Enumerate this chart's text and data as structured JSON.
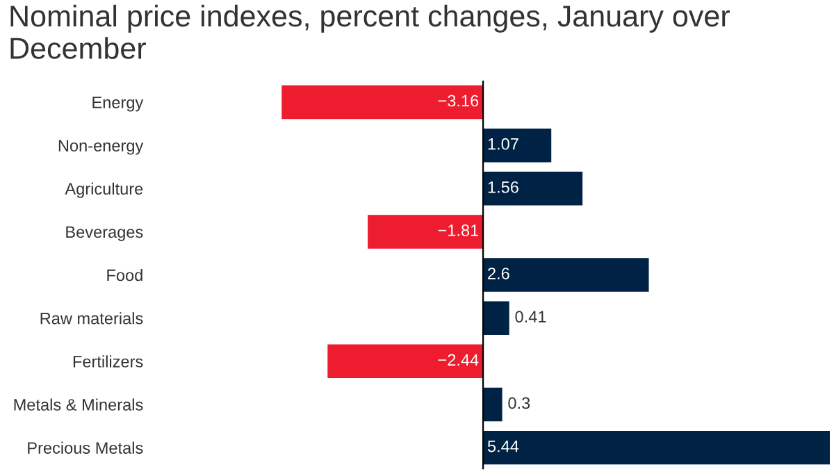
{
  "chart_data": {
    "type": "bar",
    "orientation": "horizontal",
    "title": "Nominal price indexes, percent changes, January over December",
    "categories": [
      "Energy",
      "Non-energy",
      "Agriculture",
      "Beverages",
      "Food",
      "Raw materials",
      "Fertilizers",
      "Metals & Minerals",
      "Precious Metals"
    ],
    "values": [
      -3.16,
      1.07,
      1.56,
      -1.81,
      2.6,
      0.41,
      -2.44,
      0.3,
      5.44
    ],
    "colors": [
      "#ed1c2e",
      "#002244",
      "#002244",
      "#ed1c2e",
      "#002244",
      "#002244",
      "#ed1c2e",
      "#002244",
      "#002244"
    ],
    "data_labels": true,
    "grid": false,
    "legend": false,
    "tick_labels": "y"
  }
}
